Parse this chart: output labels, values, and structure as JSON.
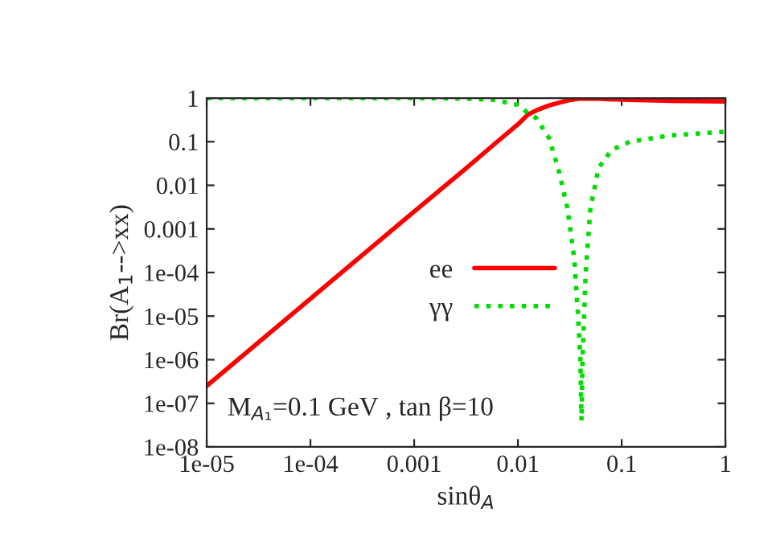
{
  "chart_data": {
    "type": "line",
    "xlabel": "sinθ$_{A}$",
    "ylabel": "Br(A$_{1}$-->xx)",
    "log": "xy",
    "xlim": [
      1e-05,
      1
    ],
    "ylim": [
      1e-08,
      1
    ],
    "xticks": [
      {
        "value": 1e-05,
        "label": "1e-05"
      },
      {
        "value": 0.0001,
        "label": "1e-04"
      },
      0.001,
      0.01,
      0.1,
      1
    ],
    "yticks": [
      {
        "value": 1e-08,
        "label": "1e-08"
      },
      {
        "value": 1e-07,
        "label": "1e-07"
      },
      {
        "value": 1e-06,
        "label": "1e-06"
      },
      {
        "value": 1e-05,
        "label": "1e-05"
      },
      {
        "value": 0.0001,
        "label": "1e-04"
      },
      0.001,
      0.01,
      0.1,
      1
    ],
    "series": [
      {
        "name": "ee",
        "color": "#ff0000",
        "line_style": "solid",
        "x": [
          1e-05,
          0.0001,
          0.001,
          0.003,
          0.006,
          0.01,
          0.0125,
          0.015,
          0.02,
          0.03,
          0.04,
          0.06,
          0.1,
          0.3,
          1
        ],
        "values": [
          2.5e-07,
          2.5e-05,
          0.0025,
          0.022,
          0.09,
          0.25,
          0.42,
          0.52,
          0.68,
          0.88,
          0.98,
          0.97,
          0.92,
          0.86,
          0.84
        ]
      },
      {
        "name": "γγ",
        "color": "#00dd00",
        "line_style": "dotted",
        "x": [
          1e-05,
          0.001,
          0.003,
          0.006,
          0.01,
          0.0125,
          0.015,
          0.02,
          0.025,
          0.03,
          0.035,
          0.038,
          0.04,
          0.041,
          0.042,
          0.045,
          0.05,
          0.06,
          0.08,
          0.12,
          0.3,
          1
        ],
        "values": [
          1,
          1,
          0.98,
          0.9,
          0.7,
          0.45,
          0.35,
          0.12,
          0.02,
          0.003,
          0.0002,
          1e-05,
          1e-06,
          4e-08,
          1e-06,
          0.0001,
          0.003,
          0.025,
          0.065,
          0.1,
          0.14,
          0.17
        ]
      }
    ],
    "legend": "center",
    "grid": false,
    "annotations": [
      "M$_{A₁}$=0.1 GeV , tan β=10"
    ]
  }
}
